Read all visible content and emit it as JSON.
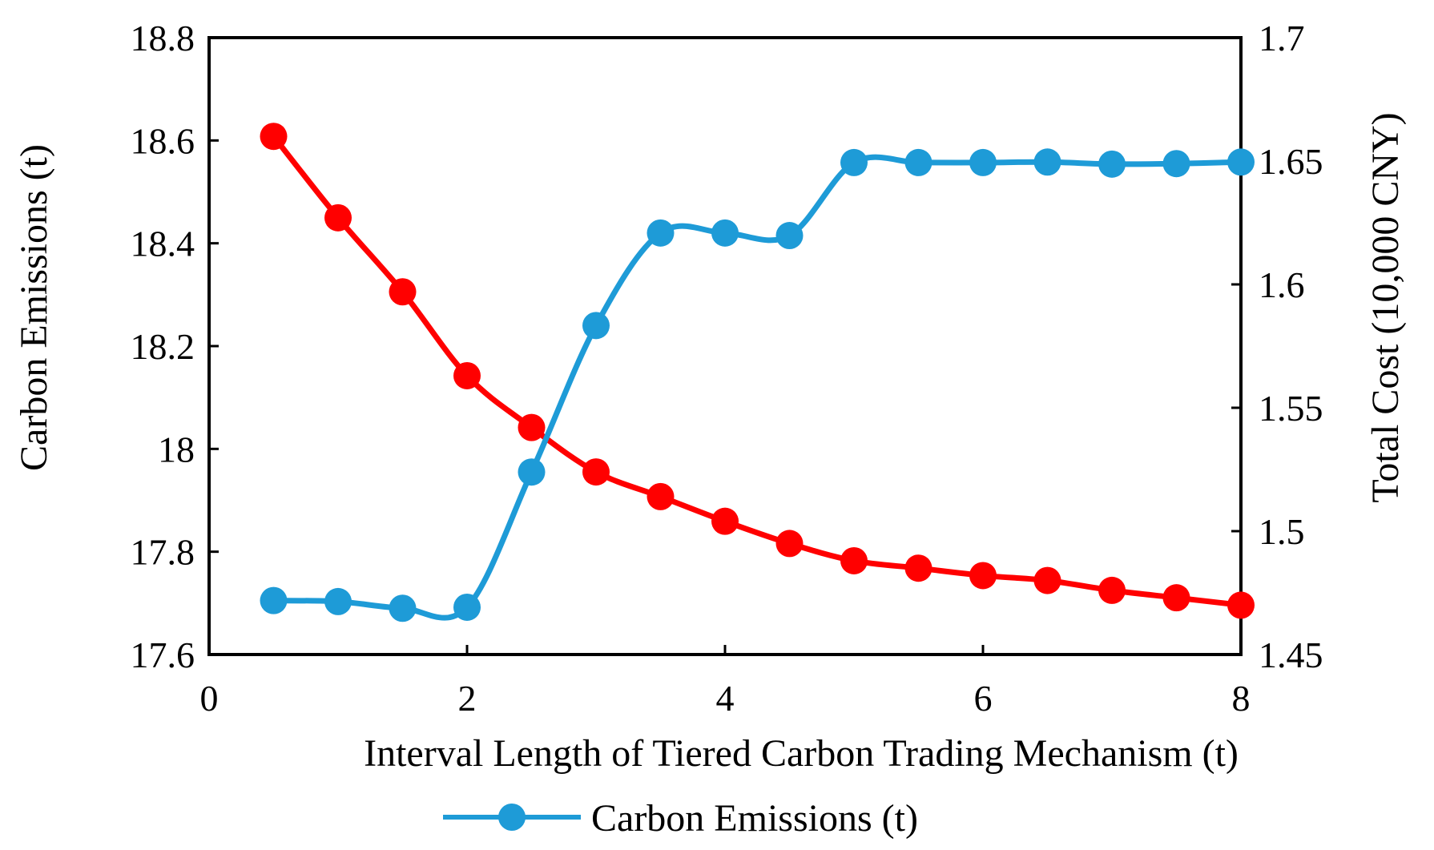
{
  "chart_data": {
    "type": "line",
    "title": "",
    "xlabel": "Interval Length of Tiered Carbon Trading Mechanism (t)",
    "ylabel_left": "Carbon Emissions (t)",
    "ylabel_right": "Total Cost (10,000 CNY)",
    "xlim": [
      0,
      8
    ],
    "ylim_left": [
      17.6,
      18.8
    ],
    "ylim_right": [
      1.45,
      1.7
    ],
    "x_ticks": [
      "0",
      "2",
      "4",
      "6",
      "8"
    ],
    "y_left_ticks": [
      "17.6",
      "17.8",
      "18",
      "18.2",
      "18.4",
      "18.6",
      "18.8"
    ],
    "y_right_ticks": [
      "1.45",
      "1.5",
      "1.55",
      "1.6",
      "1.65",
      "1.7"
    ],
    "grid": false,
    "legend_position": "bottom-center",
    "series": [
      {
        "name": "Carbon Emissions (t)",
        "axis": "left",
        "color": "#1E9BD7",
        "show_in_legend": true,
        "x": [
          0.5,
          1,
          1.5,
          2,
          2.5,
          3,
          3.5,
          4,
          4.5,
          5,
          5.5,
          6,
          6.5,
          7,
          7.5,
          8
        ],
        "values": [
          17.705,
          17.703,
          17.69,
          17.692,
          17.955,
          18.24,
          18.42,
          18.42,
          18.415,
          18.557,
          18.557,
          18.557,
          18.558,
          18.554,
          18.555,
          18.558
        ]
      },
      {
        "name": "Total Cost (10,000 CNY)",
        "axis": "right",
        "color": "#FF0000",
        "show_in_legend": false,
        "x": [
          0.5,
          1,
          1.5,
          2,
          2.5,
          3,
          3.5,
          4,
          4.5,
          5,
          5.5,
          6,
          6.5,
          7,
          7.5,
          8
        ],
        "values": [
          1.66,
          1.627,
          1.597,
          1.563,
          1.542,
          1.524,
          1.514,
          1.504,
          1.495,
          1.488,
          1.485,
          1.482,
          1.48,
          1.476,
          1.473,
          1.47
        ]
      }
    ]
  }
}
